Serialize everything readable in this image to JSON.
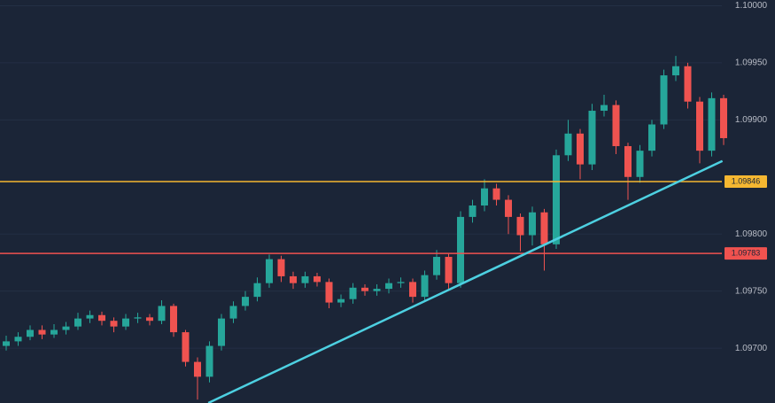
{
  "chart_data": {
    "type": "candlestick",
    "up_color": "#26a69a",
    "down_color": "#ef5350",
    "open": [
      1.09702,
      1.09706,
      1.0971,
      1.09716,
      1.09712,
      1.09716,
      1.09719,
      1.09726,
      1.09729,
      1.09724,
      1.09719,
      1.09726,
      1.09727,
      1.09724,
      1.09737,
      1.09714,
      1.09688,
      1.09675,
      1.09702,
      1.09726,
      1.09737,
      1.09745,
      1.09757,
      1.09778,
      1.09763,
      1.09757,
      1.09763,
      1.09758,
      1.0974,
      1.09743,
      1.09753,
      1.0975,
      1.09752,
      1.09757,
      1.09758,
      1.09745,
      1.09764,
      1.0978,
      1.09757,
      1.09815,
      1.09825,
      1.0984,
      1.0983,
      1.09815,
      1.09799,
      1.09819,
      1.09791,
      1.09869,
      1.09888,
      1.09861,
      1.09908,
      1.09913,
      1.09877,
      1.0985,
      1.09873,
      1.09896,
      1.09939,
      1.09947,
      1.09916,
      1.09873,
      1.09919
    ],
    "high": [
      1.09711,
      1.09714,
      1.0972,
      1.0972,
      1.09721,
      1.09723,
      1.09731,
      1.09733,
      1.09732,
      1.09727,
      1.0973,
      1.09731,
      1.0973,
      1.09742,
      1.09739,
      1.09716,
      1.09692,
      1.09706,
      1.0973,
      1.09741,
      1.0975,
      1.09762,
      1.09782,
      1.09781,
      1.09767,
      1.09767,
      1.09766,
      1.09761,
      1.09747,
      1.09757,
      1.09756,
      1.09756,
      1.09761,
      1.09762,
      1.09761,
      1.09768,
      1.09786,
      1.09783,
      1.0982,
      1.0983,
      1.09848,
      1.09844,
      1.09834,
      1.09818,
      1.09824,
      1.09822,
      1.09874,
      1.099,
      1.09892,
      1.09914,
      1.09922,
      1.09917,
      1.0988,
      1.09878,
      1.099,
      1.09944,
      1.09956,
      1.0995,
      1.0992,
      1.09924,
      1.09922
    ],
    "low": [
      1.09698,
      1.09702,
      1.09707,
      1.09708,
      1.09709,
      1.09712,
      1.09716,
      1.09722,
      1.0972,
      1.09714,
      1.09716,
      1.09722,
      1.0972,
      1.09721,
      1.0971,
      1.09684,
      1.09655,
      1.0967,
      1.09698,
      1.09722,
      1.09733,
      1.09741,
      1.09753,
      1.09758,
      1.09752,
      1.09753,
      1.09754,
      1.09735,
      1.09736,
      1.09739,
      1.09746,
      1.09746,
      1.09748,
      1.09753,
      1.0974,
      1.09741,
      1.0976,
      1.09752,
      1.09753,
      1.0981,
      1.0982,
      1.09825,
      1.098,
      1.09785,
      1.0979,
      1.09768,
      1.09787,
      1.09864,
      1.09848,
      1.09856,
      1.09903,
      1.0987,
      1.0983,
      1.09845,
      1.09868,
      1.09892,
      1.09934,
      1.0991,
      1.09862,
      1.09868,
      1.09878
    ],
    "close": [
      1.09706,
      1.0971,
      1.09716,
      1.09712,
      1.09716,
      1.09719,
      1.09726,
      1.09729,
      1.09724,
      1.09719,
      1.09726,
      1.09727,
      1.09724,
      1.09737,
      1.09714,
      1.09688,
      1.09675,
      1.09702,
      1.09726,
      1.09737,
      1.09745,
      1.09757,
      1.09778,
      1.09763,
      1.09757,
      1.09763,
      1.09758,
      1.0974,
      1.09743,
      1.09753,
      1.0975,
      1.09752,
      1.09757,
      1.09758,
      1.09745,
      1.09764,
      1.0978,
      1.09757,
      1.09815,
      1.09825,
      1.0984,
      1.0983,
      1.09815,
      1.09799,
      1.09819,
      1.09791,
      1.09869,
      1.09888,
      1.09861,
      1.09908,
      1.09913,
      1.09877,
      1.0985,
      1.09873,
      1.09896,
      1.09939,
      1.09947,
      1.09916,
      1.09873,
      1.09919,
      1.09884
    ],
    "ylim": [
      1.09652,
      1.10005
    ],
    "yticks": [
      {
        "value": 1.1,
        "label": "1.10000"
      },
      {
        "value": 1.0995,
        "label": "1.09950"
      },
      {
        "value": 1.099,
        "label": "1.09900"
      },
      {
        "value": 1.098,
        "label": "1.09800"
      },
      {
        "value": 1.0975,
        "label": "1.09750"
      },
      {
        "value": 1.097,
        "label": "1.09700"
      }
    ],
    "grid": true,
    "levels": [
      {
        "value": 1.09846,
        "label": "1.09846",
        "color": "#f5b731"
      },
      {
        "value": 1.09783,
        "label": "1.09783",
        "color": "#f0524f"
      }
    ],
    "trendline": {
      "x": [
        16.9,
        59.9
      ],
      "y": [
        1.09652,
        1.09864
      ],
      "color": "#4dd0e1"
    }
  }
}
